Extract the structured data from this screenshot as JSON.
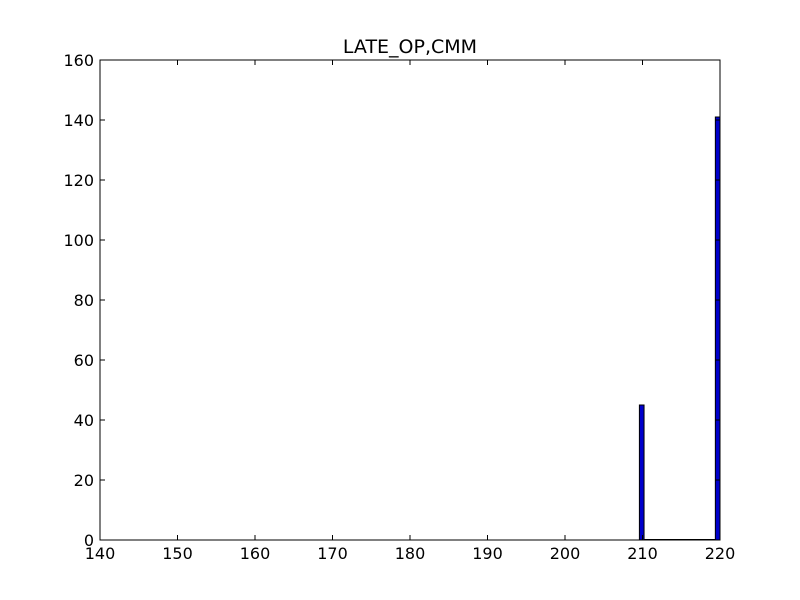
{
  "chart_data": {
    "type": "bar",
    "title": "LATE_OP,CMM",
    "xlabel": "",
    "ylabel": "",
    "xlim": [
      140,
      220
    ],
    "ylim": [
      0,
      160
    ],
    "x_ticks": [
      140,
      150,
      160,
      170,
      180,
      190,
      200,
      210,
      220
    ],
    "y_ticks": [
      0,
      20,
      40,
      60,
      80,
      100,
      120,
      140,
      160
    ],
    "x_tick_labels": [
      "140",
      "150",
      "160",
      "170",
      "180",
      "190",
      "200",
      "210",
      "220"
    ],
    "y_tick_labels": [
      "0",
      "20",
      "40",
      "60",
      "80",
      "100",
      "120",
      "140",
      "160"
    ],
    "bins": [
      {
        "x_start": 209.6,
        "x_end": 210.2,
        "value": 45
      },
      {
        "x_start": 219.4,
        "x_end": 220.0,
        "value": 141
      }
    ],
    "grid": false,
    "legend": "none",
    "colors": {
      "bar_fill": "#0000cc",
      "bar_edge": "#000000",
      "axes": "#000000",
      "background": "#ffffff"
    }
  }
}
